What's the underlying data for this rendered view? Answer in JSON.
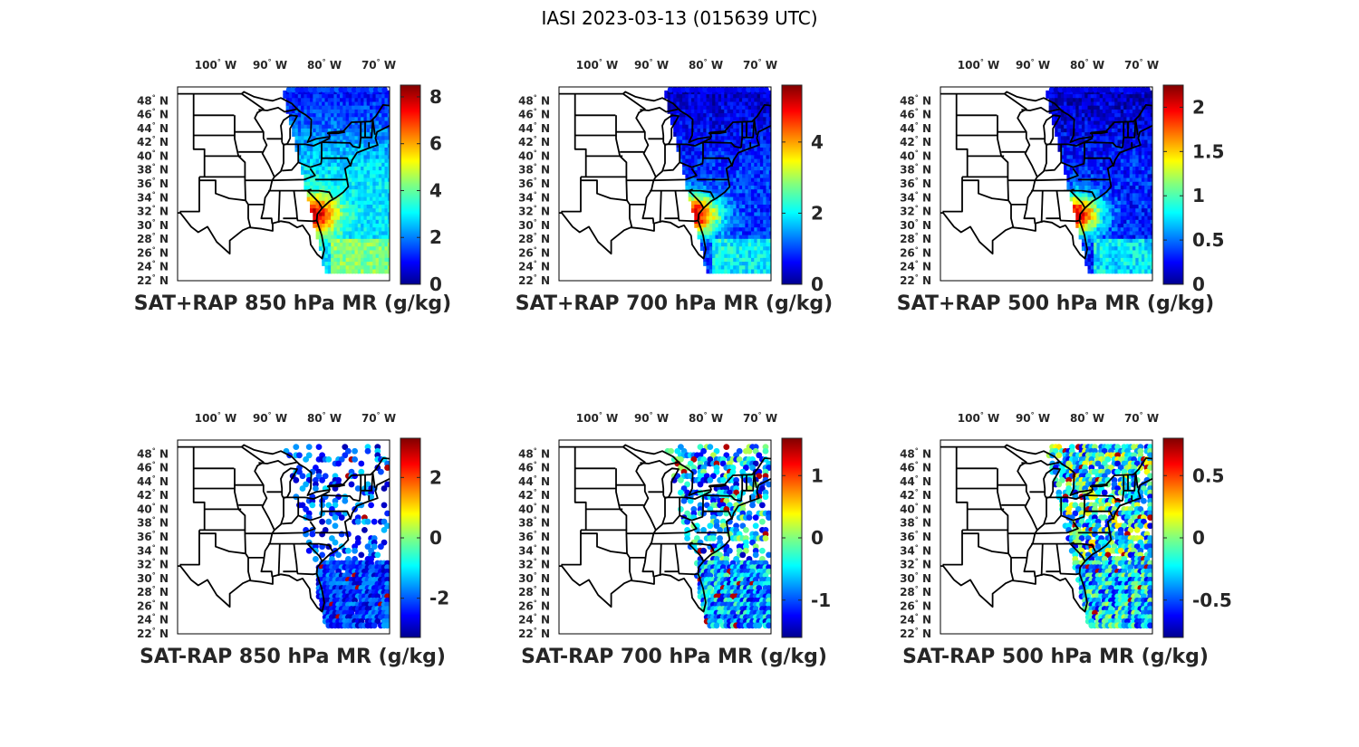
{
  "figure": {
    "title": "IASI 2023-03-13 (015639 UTC)"
  },
  "colors": {
    "jet": [
      "#00008f",
      "#0000ff",
      "#0080ff",
      "#00ffff",
      "#80ff80",
      "#ffff00",
      "#ff8000",
      "#ff0000",
      "#800000"
    ],
    "outline": "#000000",
    "text": "#262626"
  },
  "axes": {
    "lon_labels": [
      "100",
      "90",
      "80",
      "70"
    ],
    "lon_suffix": "W",
    "lat_labels": [
      "48",
      "46",
      "44",
      "42",
      "40",
      "38",
      "36",
      "34",
      "32",
      "30",
      "28",
      "26",
      "24",
      "22"
    ],
    "lat_suffix": "N",
    "deg_symbol": "°",
    "lon_range": [
      -107,
      -68
    ],
    "lat_range": [
      22,
      50
    ]
  },
  "panels": [
    {
      "title": "SAT+RAP 850 hPa MR (g/kg)",
      "colorbar": {
        "ticks": [
          "0",
          "2",
          "4",
          "6",
          "8"
        ],
        "vmin": 0,
        "vmax": 8.5
      },
      "field": {
        "type": "swath",
        "base": 3.0,
        "warm_core": 8.0,
        "spread": 1.2
      }
    },
    {
      "title": "SAT+RAP 700 hPa MR (g/kg)",
      "colorbar": {
        "ticks": [
          "0",
          "2",
          "4"
        ],
        "vmin": 0,
        "vmax": 5.6
      },
      "field": {
        "type": "swath",
        "base": 1.0,
        "warm_core": 5.2,
        "spread": 0.9
      }
    },
    {
      "title": "SAT+RAP 500 hPa MR (g/kg)",
      "colorbar": {
        "ticks": [
          "0",
          "0.5",
          "1",
          "1.5",
          "2"
        ],
        "vmin": 0,
        "vmax": 2.25
      },
      "field": {
        "type": "swath",
        "base": 0.35,
        "warm_core": 2.1,
        "spread": 0.4
      }
    },
    {
      "title": "SAT-RAP 850 hPa MR (g/kg)",
      "colorbar": {
        "ticks": [
          "2",
          "0",
          "-2"
        ],
        "vmin": -3.3,
        "vmax": 3.3
      },
      "field": {
        "type": "diff",
        "base": -2.0,
        "spread": 1.0,
        "coverage": 0.25
      }
    },
    {
      "title": "SAT-RAP 700 hPa MR (g/kg)",
      "colorbar": {
        "ticks": [
          "1",
          "0",
          "-1"
        ],
        "vmin": -1.6,
        "vmax": 1.6
      },
      "field": {
        "type": "diff",
        "base": -0.6,
        "spread": 0.8,
        "coverage": 0.4
      }
    },
    {
      "title": "SAT-RAP 500 hPa MR (g/kg)",
      "colorbar": {
        "ticks": [
          "0.5",
          "0",
          "-0.5"
        ],
        "vmin": -0.8,
        "vmax": 0.8
      },
      "field": {
        "type": "diff",
        "base": -0.2,
        "spread": 0.45,
        "coverage": 0.65
      }
    }
  ]
}
